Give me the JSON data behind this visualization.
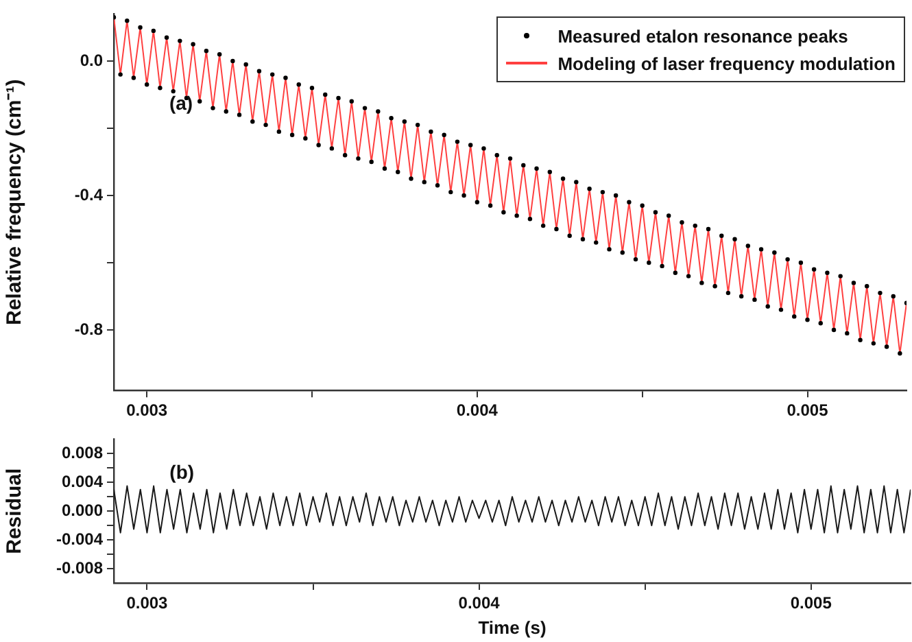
{
  "chart_data": [
    {
      "type": "line",
      "ylabel": "Relative frequency (cm⁻¹)",
      "annotations": [
        "(a)"
      ],
      "legend": "top right",
      "x": [
        0.0029,
        0.00292,
        0.00294,
        0.00296,
        0.00298,
        0.003,
        0.00302,
        0.00304,
        0.00306,
        0.00308,
        0.0031,
        0.00312,
        0.00314,
        0.00316,
        0.00318,
        0.0032,
        0.00322,
        0.00324,
        0.00326,
        0.00328,
        0.0033,
        0.00332,
        0.00334,
        0.00336,
        0.00338,
        0.0034,
        0.00342,
        0.00344,
        0.00346,
        0.00348,
        0.0035,
        0.00352,
        0.00354,
        0.00356,
        0.00358,
        0.0036,
        0.00362,
        0.00364,
        0.00366,
        0.00368,
        0.0037,
        0.00372,
        0.00374,
        0.00376,
        0.00378,
        0.0038,
        0.00382,
        0.00384,
        0.00386,
        0.00388,
        0.0039,
        0.00392,
        0.00394,
        0.00396,
        0.00398,
        0.004,
        0.00402,
        0.00404,
        0.00406,
        0.00408,
        0.0041,
        0.00412,
        0.00414,
        0.00416,
        0.00418,
        0.0042,
        0.00422,
        0.00424,
        0.00426,
        0.00428,
        0.0043,
        0.00432,
        0.00434,
        0.00436,
        0.00438,
        0.0044,
        0.00442,
        0.00444,
        0.00446,
        0.00448,
        0.0045,
        0.00452,
        0.00454,
        0.00456,
        0.00458,
        0.0046,
        0.00462,
        0.00464,
        0.00466,
        0.00468,
        0.0047,
        0.00472,
        0.00474,
        0.00476,
        0.00478,
        0.0048,
        0.00482,
        0.00484,
        0.00486,
        0.00488,
        0.0049,
        0.00492,
        0.00494,
        0.00496,
        0.00498,
        0.005,
        0.00502,
        0.00504,
        0.00506,
        0.00508,
        0.0051,
        0.00512,
        0.00514,
        0.00516,
        0.00518,
        0.0052,
        0.00522,
        0.00524,
        0.00526,
        0.00528,
        0.0053
      ],
      "series": [
        {
          "name": "Modeling of laser frequency modulation",
          "color": "#ff4040",
          "values": [
            0.13,
            -0.04,
            0.12,
            -0.05,
            0.1,
            -0.07,
            0.09,
            -0.08,
            0.07,
            -0.09,
            0.06,
            -0.11,
            0.05,
            -0.12,
            0.03,
            -0.14,
            0.02,
            -0.15,
            0.0,
            -0.16,
            -0.01,
            -0.18,
            -0.03,
            -0.19,
            -0.04,
            -0.21,
            -0.05,
            -0.22,
            -0.07,
            -0.23,
            -0.08,
            -0.25,
            -0.1,
            -0.26,
            -0.11,
            -0.28,
            -0.12,
            -0.29,
            -0.14,
            -0.3,
            -0.15,
            -0.32,
            -0.17,
            -0.33,
            -0.18,
            -0.35,
            -0.19,
            -0.36,
            -0.21,
            -0.37,
            -0.22,
            -0.39,
            -0.24,
            -0.4,
            -0.25,
            -0.42,
            -0.26,
            -0.43,
            -0.28,
            -0.45,
            -0.29,
            -0.46,
            -0.31,
            -0.47,
            -0.32,
            -0.49,
            -0.33,
            -0.5,
            -0.35,
            -0.52,
            -0.36,
            -0.53,
            -0.38,
            -0.54,
            -0.39,
            -0.56,
            -0.4,
            -0.57,
            -0.42,
            -0.59,
            -0.43,
            -0.6,
            -0.45,
            -0.61,
            -0.46,
            -0.63,
            -0.48,
            -0.64,
            -0.49,
            -0.66,
            -0.5,
            -0.67,
            -0.52,
            -0.69,
            -0.53,
            -0.7,
            -0.55,
            -0.71,
            -0.56,
            -0.73,
            -0.57,
            -0.74,
            -0.59,
            -0.76,
            -0.6,
            -0.77,
            -0.62,
            -0.78,
            -0.63,
            -0.8,
            -0.64,
            -0.81,
            -0.66,
            -0.83,
            -0.67,
            -0.84,
            -0.69,
            -0.85,
            -0.7,
            -0.87,
            -0.72
          ]
        },
        {
          "name": "Measured etalon resonance peaks",
          "type": "scatter",
          "color": "#000000",
          "values": [
            0.13,
            -0.04,
            0.12,
            -0.05,
            0.1,
            -0.07,
            0.09,
            -0.08,
            0.07,
            -0.09,
            0.06,
            -0.11,
            0.05,
            -0.12,
            0.03,
            -0.14,
            0.02,
            -0.15,
            0.0,
            -0.16,
            -0.01,
            -0.18,
            -0.03,
            -0.19,
            -0.04,
            -0.21,
            -0.05,
            -0.22,
            -0.07,
            -0.23,
            -0.08,
            -0.25,
            -0.1,
            -0.26,
            -0.11,
            -0.28,
            -0.12,
            -0.29,
            -0.14,
            -0.3,
            -0.15,
            -0.32,
            -0.17,
            -0.33,
            -0.18,
            -0.35,
            -0.19,
            -0.36,
            -0.21,
            -0.37,
            -0.22,
            -0.39,
            -0.24,
            -0.4,
            -0.25,
            -0.42,
            -0.26,
            -0.43,
            -0.28,
            -0.45,
            -0.29,
            -0.46,
            -0.31,
            -0.47,
            -0.32,
            -0.49,
            -0.33,
            -0.5,
            -0.35,
            -0.52,
            -0.36,
            -0.53,
            -0.38,
            -0.54,
            -0.39,
            -0.56,
            -0.4,
            -0.57,
            -0.42,
            -0.59,
            -0.43,
            -0.6,
            -0.45,
            -0.61,
            -0.46,
            -0.63,
            -0.48,
            -0.64,
            -0.49,
            -0.66,
            -0.5,
            -0.67,
            -0.52,
            -0.69,
            -0.53,
            -0.7,
            -0.55,
            -0.71,
            -0.56,
            -0.73,
            -0.57,
            -0.74,
            -0.59,
            -0.76,
            -0.6,
            -0.77,
            -0.62,
            -0.78,
            -0.63,
            -0.8,
            -0.64,
            -0.81,
            -0.66,
            -0.83,
            -0.67,
            -0.84,
            -0.69,
            -0.85,
            -0.7,
            -0.87,
            -0.72
          ]
        }
      ],
      "xlim": [
        0.0029,
        0.0053
      ],
      "xticks": [
        {
          "value": 0.003,
          "label": "0.003"
        },
        {
          "value": 0.0035,
          "label": null
        },
        {
          "value": 0.004,
          "label": "0.004"
        },
        {
          "value": 0.0045,
          "label": null
        },
        {
          "value": 0.005,
          "label": "0.005"
        }
      ],
      "ylim": [
        -0.98,
        0.14
      ],
      "yticks": [
        {
          "value": -0.8,
          "label": "-0.8"
        },
        {
          "value": -0.6,
          "label": null
        },
        {
          "value": -0.4,
          "label": "-0.4"
        },
        {
          "value": -0.2,
          "label": null
        },
        {
          "value": 0,
          "label": "0.0"
        }
      ]
    },
    {
      "type": "line",
      "xlabel": "Time (s)",
      "ylabel": "Residual",
      "annotations": [
        "(b)"
      ],
      "x": [
        0.0029,
        0.00292,
        0.00294,
        0.00296,
        0.00298,
        0.003,
        0.00302,
        0.00304,
        0.00306,
        0.00308,
        0.0031,
        0.00312,
        0.00314,
        0.00316,
        0.00318,
        0.0032,
        0.00322,
        0.00324,
        0.00326,
        0.00328,
        0.0033,
        0.00332,
        0.00334,
        0.00336,
        0.00338,
        0.0034,
        0.00342,
        0.00344,
        0.00346,
        0.00348,
        0.0035,
        0.00352,
        0.00354,
        0.00356,
        0.00358,
        0.0036,
        0.00362,
        0.00364,
        0.00366,
        0.00368,
        0.0037,
        0.00372,
        0.00374,
        0.00376,
        0.00378,
        0.0038,
        0.00382,
        0.00384,
        0.00386,
        0.00388,
        0.0039,
        0.00392,
        0.00394,
        0.00396,
        0.00398,
        0.004,
        0.00402,
        0.00404,
        0.00406,
        0.00408,
        0.0041,
        0.00412,
        0.00414,
        0.00416,
        0.00418,
        0.0042,
        0.00422,
        0.00424,
        0.00426,
        0.00428,
        0.0043,
        0.00432,
        0.00434,
        0.00436,
        0.00438,
        0.0044,
        0.00442,
        0.00444,
        0.00446,
        0.00448,
        0.0045,
        0.00452,
        0.00454,
        0.00456,
        0.00458,
        0.0046,
        0.00462,
        0.00464,
        0.00466,
        0.00468,
        0.0047,
        0.00472,
        0.00474,
        0.00476,
        0.00478,
        0.0048,
        0.00482,
        0.00484,
        0.00486,
        0.00488,
        0.0049,
        0.00492,
        0.00494,
        0.00496,
        0.00498,
        0.005,
        0.00502,
        0.00504,
        0.00506,
        0.00508,
        0.0051,
        0.00512,
        0.00514,
        0.00516,
        0.00518,
        0.0052,
        0.00522,
        0.00524,
        0.00526,
        0.00528,
        0.0053
      ],
      "series": [
        {
          "color": "#1a1a1a",
          "values": [
            0.003,
            -0.003,
            0.0035,
            -0.0025,
            0.003,
            -0.003,
            0.0035,
            -0.003,
            0.003,
            -0.0025,
            0.003,
            -0.003,
            0.0025,
            -0.0025,
            0.003,
            -0.003,
            0.0025,
            -0.0025,
            0.003,
            -0.002,
            0.0025,
            -0.002,
            0.002,
            -0.0025,
            0.0025,
            -0.002,
            0.002,
            -0.002,
            0.0025,
            -0.002,
            0.002,
            -0.0015,
            0.0025,
            -0.002,
            0.002,
            -0.002,
            0.002,
            -0.0015,
            0.0025,
            -0.002,
            0.002,
            -0.0015,
            0.002,
            -0.002,
            0.0015,
            -0.0015,
            0.002,
            -0.0015,
            0.0015,
            -0.002,
            0.0015,
            -0.0015,
            0.002,
            -0.0015,
            0.0015,
            -0.001,
            0.0015,
            -0.0015,
            0.0015,
            -0.002,
            0.002,
            -0.0015,
            0.0015,
            -0.0015,
            0.002,
            -0.0015,
            0.0015,
            -0.002,
            0.0015,
            -0.0015,
            0.002,
            -0.0015,
            0.0015,
            -0.002,
            0.002,
            -0.0015,
            0.002,
            -0.002,
            0.0015,
            -0.002,
            0.002,
            -0.002,
            0.0025,
            -0.002,
            0.002,
            -0.0025,
            0.002,
            -0.002,
            0.0025,
            -0.002,
            0.002,
            -0.0025,
            0.0025,
            -0.002,
            0.0025,
            -0.0025,
            0.002,
            -0.0025,
            0.0025,
            -0.0025,
            0.003,
            -0.0025,
            0.0025,
            -0.003,
            0.003,
            -0.0025,
            0.003,
            -0.003,
            0.0035,
            -0.003,
            0.003,
            -0.0025,
            0.0035,
            -0.003,
            0.003,
            -0.003,
            0.0035,
            -0.003,
            0.003,
            -0.003,
            0.003
          ]
        }
      ],
      "xlim": [
        0.0029,
        0.0053
      ],
      "xticks": [
        {
          "value": 0.003,
          "label": "0.003"
        },
        {
          "value": 0.0035,
          "label": null
        },
        {
          "value": 0.004,
          "label": "0.004"
        },
        {
          "value": 0.0045,
          "label": null
        },
        {
          "value": 0.005,
          "label": "0.005"
        }
      ],
      "ylim": [
        -0.01,
        0.01
      ],
      "yticks": [
        {
          "value": -0.008,
          "label": "-0.008"
        },
        {
          "value": -0.006,
          "label": null
        },
        {
          "value": -0.004,
          "label": "-0.004"
        },
        {
          "value": -0.002,
          "label": null
        },
        {
          "value": 0,
          "label": "0.000"
        },
        {
          "value": 0.002,
          "label": null
        },
        {
          "value": 0.004,
          "label": "0.004"
        },
        {
          "value": 0.006,
          "label": null
        },
        {
          "value": 0.008,
          "label": "0.008"
        }
      ]
    }
  ]
}
